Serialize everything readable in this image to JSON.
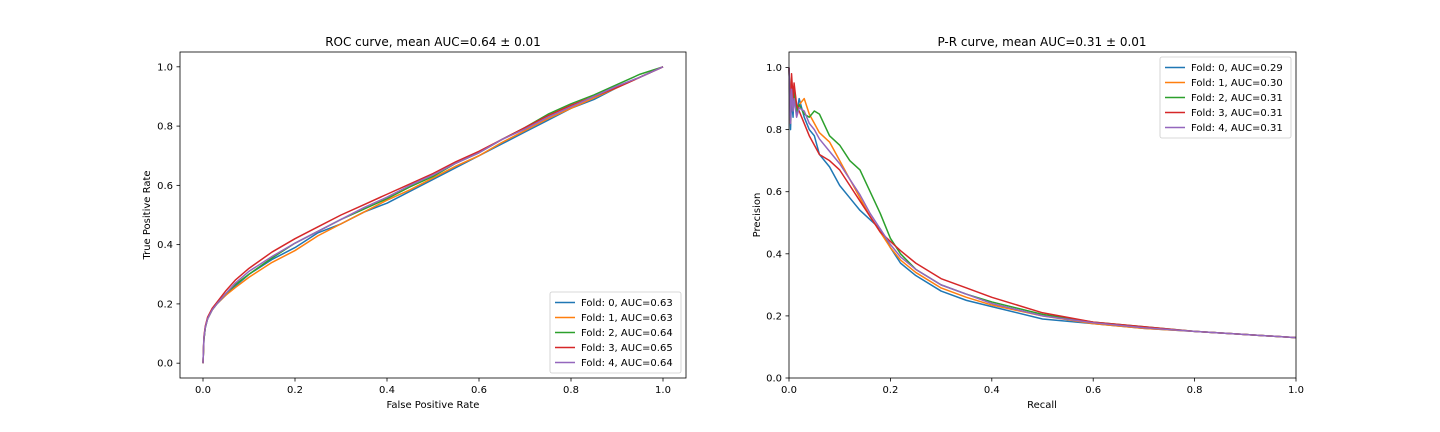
{
  "colors": [
    "#1f77b4",
    "#ff7f0e",
    "#2ca02c",
    "#d62728",
    "#9467bd"
  ],
  "chart_data": [
    {
      "type": "line",
      "title": "ROC curve, mean AUC=0.64 ± 0.01",
      "xlabel": "False Positive Rate",
      "ylabel": "True Positive Rate",
      "xlim": [
        -0.05,
        1.05
      ],
      "ylim": [
        -0.05,
        1.05
      ],
      "xticks": [
        0.0,
        0.2,
        0.4,
        0.6,
        0.8,
        1.0
      ],
      "yticks": [
        0.0,
        0.2,
        0.4,
        0.6,
        0.8,
        1.0
      ],
      "tick_format": "0.0",
      "legend_position": "lower-right",
      "grid": false,
      "series": [
        {
          "name": "Fold: 0, AUC=0.63",
          "color": "#1f77b4",
          "x": [
            0,
            0.002,
            0.005,
            0.01,
            0.02,
            0.03,
            0.05,
            0.07,
            0.1,
            0.15,
            0.2,
            0.25,
            0.3,
            0.35,
            0.4,
            0.45,
            0.5,
            0.55,
            0.6,
            0.65,
            0.7,
            0.75,
            0.8,
            0.85,
            0.9,
            0.95,
            1.0
          ],
          "y": [
            0,
            0.08,
            0.12,
            0.15,
            0.18,
            0.2,
            0.23,
            0.26,
            0.3,
            0.35,
            0.39,
            0.44,
            0.47,
            0.51,
            0.54,
            0.58,
            0.62,
            0.66,
            0.7,
            0.74,
            0.78,
            0.82,
            0.86,
            0.89,
            0.93,
            0.965,
            1.0
          ]
        },
        {
          "name": "Fold: 1, AUC=0.63",
          "color": "#ff7f0e",
          "x": [
            0,
            0.002,
            0.005,
            0.01,
            0.02,
            0.03,
            0.05,
            0.07,
            0.1,
            0.15,
            0.2,
            0.25,
            0.3,
            0.35,
            0.4,
            0.45,
            0.5,
            0.55,
            0.6,
            0.65,
            0.7,
            0.75,
            0.8,
            0.85,
            0.9,
            0.95,
            1.0
          ],
          "y": [
            0,
            0.08,
            0.12,
            0.15,
            0.18,
            0.2,
            0.23,
            0.255,
            0.29,
            0.34,
            0.38,
            0.43,
            0.47,
            0.51,
            0.55,
            0.585,
            0.625,
            0.665,
            0.7,
            0.745,
            0.785,
            0.825,
            0.86,
            0.895,
            0.93,
            0.965,
            1.0
          ]
        },
        {
          "name": "Fold: 2, AUC=0.64",
          "color": "#2ca02c",
          "x": [
            0,
            0.002,
            0.005,
            0.01,
            0.02,
            0.03,
            0.05,
            0.07,
            0.1,
            0.15,
            0.2,
            0.25,
            0.3,
            0.35,
            0.4,
            0.45,
            0.5,
            0.55,
            0.6,
            0.65,
            0.7,
            0.75,
            0.8,
            0.85,
            0.9,
            0.95,
            1.0
          ],
          "y": [
            0,
            0.08,
            0.12,
            0.15,
            0.18,
            0.2,
            0.235,
            0.265,
            0.3,
            0.355,
            0.405,
            0.445,
            0.485,
            0.52,
            0.555,
            0.595,
            0.63,
            0.675,
            0.71,
            0.755,
            0.795,
            0.84,
            0.875,
            0.905,
            0.94,
            0.975,
            1.0
          ]
        },
        {
          "name": "Fold: 3, AUC=0.65",
          "color": "#d62728",
          "x": [
            0,
            0.002,
            0.005,
            0.01,
            0.02,
            0.03,
            0.05,
            0.07,
            0.1,
            0.15,
            0.2,
            0.25,
            0.3,
            0.35,
            0.4,
            0.45,
            0.5,
            0.55,
            0.6,
            0.65,
            0.7,
            0.75,
            0.8,
            0.85,
            0.9,
            0.95,
            1.0
          ],
          "y": [
            0,
            0.09,
            0.125,
            0.155,
            0.185,
            0.205,
            0.245,
            0.28,
            0.32,
            0.375,
            0.42,
            0.46,
            0.5,
            0.535,
            0.57,
            0.605,
            0.64,
            0.68,
            0.715,
            0.755,
            0.795,
            0.835,
            0.87,
            0.9,
            0.93,
            0.965,
            1.0
          ]
        },
        {
          "name": "Fold: 4, AUC=0.64",
          "color": "#9467bd",
          "x": [
            0,
            0.002,
            0.005,
            0.01,
            0.02,
            0.03,
            0.05,
            0.07,
            0.1,
            0.15,
            0.2,
            0.25,
            0.3,
            0.35,
            0.4,
            0.45,
            0.5,
            0.55,
            0.6,
            0.65,
            0.7,
            0.75,
            0.8,
            0.85,
            0.9,
            0.95,
            1.0
          ],
          "y": [
            0,
            0.085,
            0.12,
            0.15,
            0.18,
            0.2,
            0.235,
            0.27,
            0.31,
            0.36,
            0.405,
            0.445,
            0.485,
            0.525,
            0.56,
            0.6,
            0.635,
            0.675,
            0.71,
            0.755,
            0.79,
            0.83,
            0.865,
            0.9,
            0.935,
            0.965,
            1.0
          ]
        }
      ]
    },
    {
      "type": "line",
      "title": "P-R curve, mean AUC=0.31 ± 0.01",
      "xlabel": "Recall",
      "ylabel": "Precision",
      "xlim": [
        0.0,
        1.0
      ],
      "ylim": [
        0.0,
        1.05
      ],
      "xticks": [
        0.0,
        0.2,
        0.4,
        0.6,
        0.8,
        1.0
      ],
      "yticks": [
        0.0,
        0.2,
        0.4,
        0.6,
        0.8,
        1.0
      ],
      "tick_format": "0.0",
      "legend_position": "upper-right",
      "grid": false,
      "series": [
        {
          "name": "Fold: 0, AUC=0.29",
          "color": "#1f77b4",
          "x": [
            0,
            0.003,
            0.005,
            0.008,
            0.01,
            0.015,
            0.02,
            0.03,
            0.04,
            0.05,
            0.06,
            0.08,
            0.1,
            0.12,
            0.14,
            0.16,
            0.18,
            0.2,
            0.22,
            0.25,
            0.3,
            0.35,
            0.4,
            0.5,
            0.6,
            0.7,
            0.8,
            0.9,
            1.0
          ],
          "y": [
            1.0,
            0.8,
            0.9,
            0.84,
            0.93,
            0.85,
            0.9,
            0.84,
            0.8,
            0.78,
            0.72,
            0.68,
            0.62,
            0.58,
            0.54,
            0.51,
            0.48,
            0.42,
            0.37,
            0.33,
            0.28,
            0.25,
            0.23,
            0.19,
            0.175,
            0.16,
            0.15,
            0.14,
            0.13
          ]
        },
        {
          "name": "Fold: 1, AUC=0.30",
          "color": "#ff7f0e",
          "x": [
            0,
            0.003,
            0.005,
            0.008,
            0.01,
            0.015,
            0.02,
            0.03,
            0.04,
            0.05,
            0.06,
            0.08,
            0.1,
            0.12,
            0.14,
            0.16,
            0.18,
            0.2,
            0.22,
            0.25,
            0.3,
            0.35,
            0.4,
            0.5,
            0.6,
            0.7,
            0.8,
            0.9,
            1.0
          ],
          "y": [
            1.0,
            0.82,
            0.95,
            0.88,
            0.93,
            0.86,
            0.88,
            0.9,
            0.85,
            0.82,
            0.79,
            0.76,
            0.7,
            0.64,
            0.58,
            0.52,
            0.47,
            0.42,
            0.38,
            0.34,
            0.29,
            0.26,
            0.235,
            0.2,
            0.175,
            0.16,
            0.15,
            0.14,
            0.13
          ]
        },
        {
          "name": "Fold: 2, AUC=0.31",
          "color": "#2ca02c",
          "x": [
            0,
            0.003,
            0.005,
            0.008,
            0.01,
            0.015,
            0.02,
            0.03,
            0.04,
            0.05,
            0.06,
            0.08,
            0.1,
            0.12,
            0.14,
            0.16,
            0.18,
            0.2,
            0.22,
            0.25,
            0.3,
            0.35,
            0.4,
            0.5,
            0.6,
            0.7,
            0.8,
            0.9,
            1.0
          ],
          "y": [
            1.0,
            0.83,
            0.94,
            0.87,
            0.92,
            0.86,
            0.88,
            0.85,
            0.84,
            0.86,
            0.85,
            0.78,
            0.75,
            0.7,
            0.67,
            0.6,
            0.53,
            0.45,
            0.4,
            0.35,
            0.3,
            0.27,
            0.245,
            0.205,
            0.18,
            0.165,
            0.15,
            0.14,
            0.13
          ]
        },
        {
          "name": "Fold: 3, AUC=0.31",
          "color": "#d62728",
          "x": [
            0,
            0.003,
            0.005,
            0.008,
            0.01,
            0.015,
            0.02,
            0.03,
            0.04,
            0.05,
            0.06,
            0.08,
            0.1,
            0.12,
            0.14,
            0.16,
            0.18,
            0.2,
            0.22,
            0.25,
            0.3,
            0.35,
            0.4,
            0.5,
            0.6,
            0.7,
            0.8,
            0.9,
            1.0
          ],
          "y": [
            1.0,
            0.85,
            0.98,
            0.9,
            0.95,
            0.88,
            0.86,
            0.82,
            0.78,
            0.75,
            0.72,
            0.7,
            0.67,
            0.62,
            0.57,
            0.52,
            0.47,
            0.44,
            0.41,
            0.37,
            0.32,
            0.29,
            0.26,
            0.21,
            0.18,
            0.165,
            0.15,
            0.14,
            0.13
          ]
        },
        {
          "name": "Fold: 4, AUC=0.31",
          "color": "#9467bd",
          "x": [
            0,
            0.003,
            0.005,
            0.008,
            0.01,
            0.015,
            0.02,
            0.03,
            0.04,
            0.05,
            0.06,
            0.08,
            0.1,
            0.12,
            0.14,
            0.16,
            0.18,
            0.2,
            0.22,
            0.25,
            0.3,
            0.35,
            0.4,
            0.5,
            0.6,
            0.7,
            0.8,
            0.9,
            1.0
          ],
          "y": [
            1.0,
            0.82,
            0.93,
            0.86,
            0.9,
            0.84,
            0.87,
            0.86,
            0.82,
            0.8,
            0.77,
            0.73,
            0.69,
            0.64,
            0.59,
            0.53,
            0.48,
            0.43,
            0.39,
            0.35,
            0.3,
            0.27,
            0.24,
            0.2,
            0.178,
            0.162,
            0.15,
            0.14,
            0.13
          ]
        }
      ]
    }
  ]
}
